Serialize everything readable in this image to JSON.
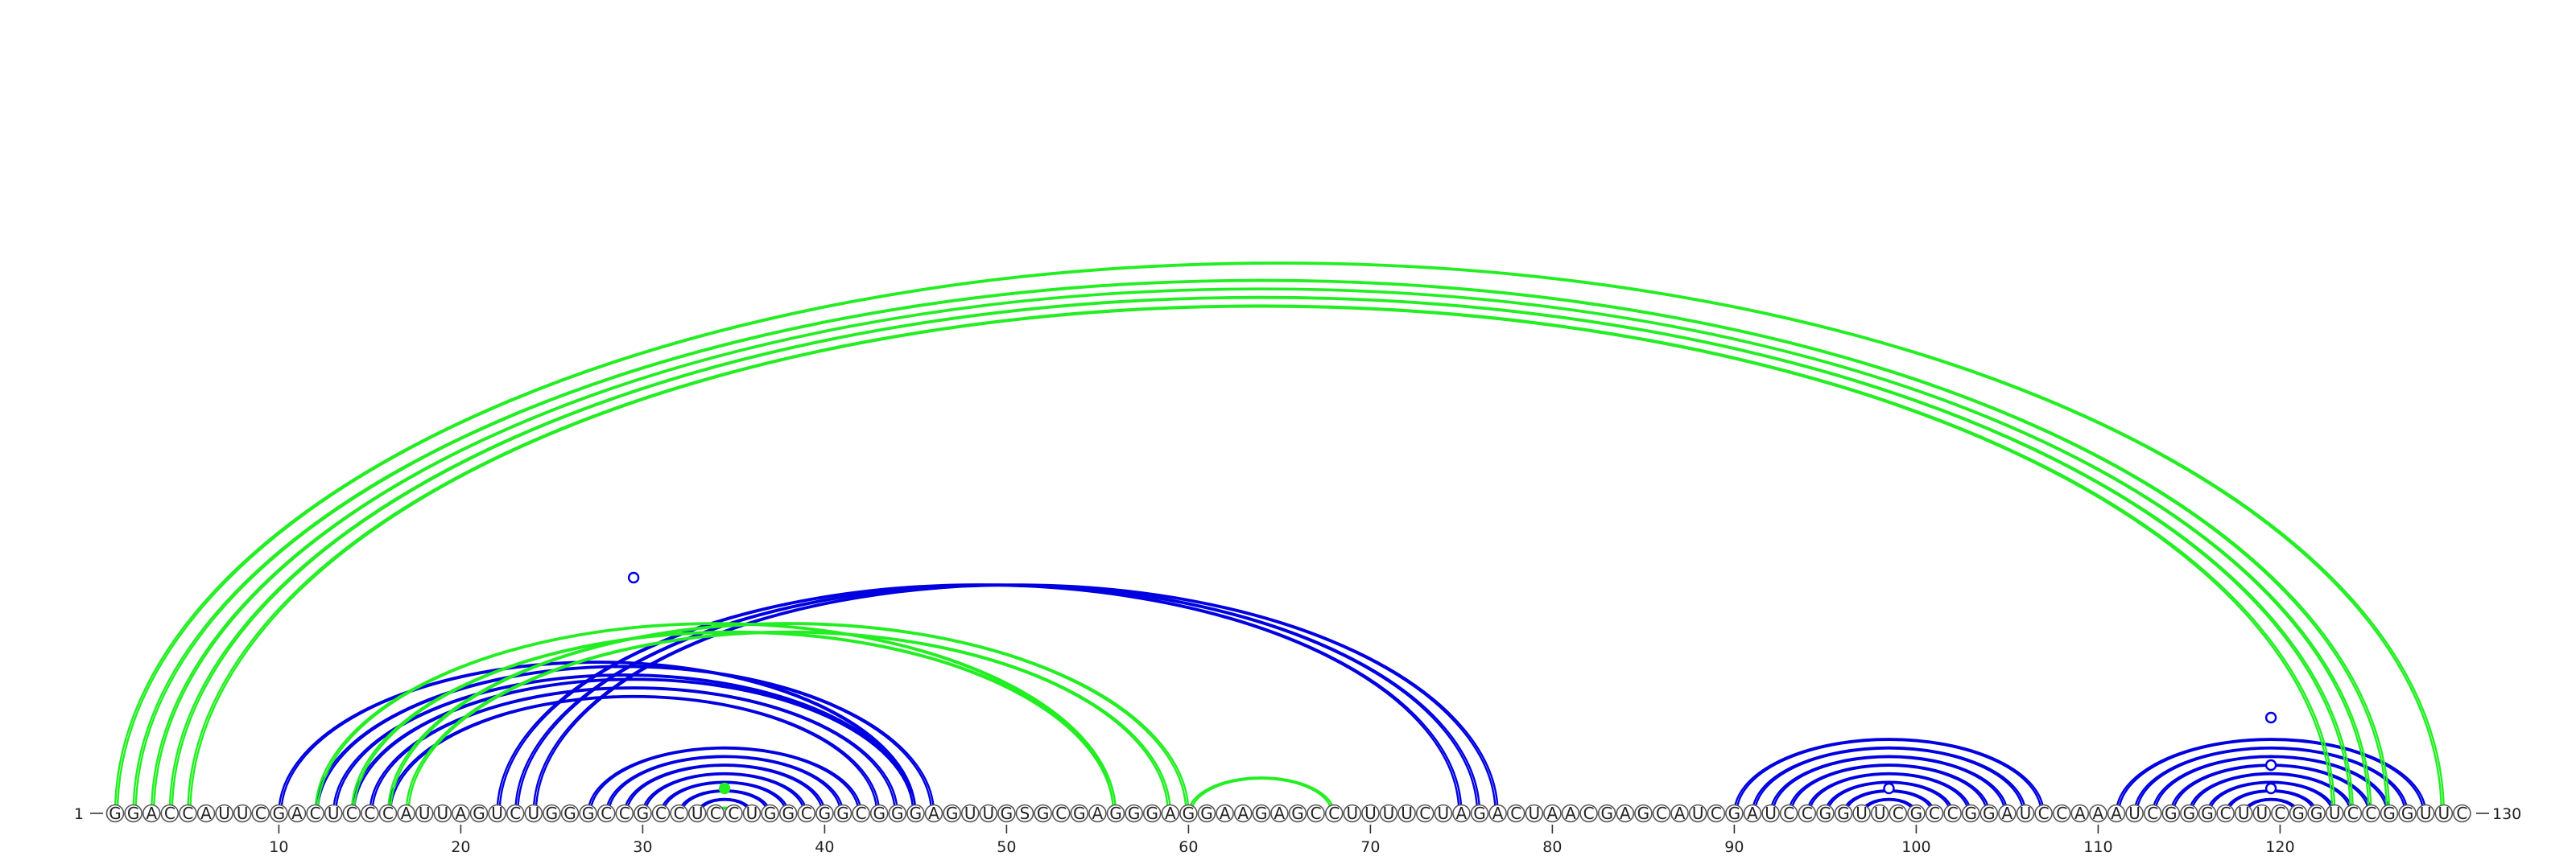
{
  "chart_data": {
    "type": "arc-diagram",
    "title": "",
    "sequence": "GGACCAUUCGACUCCCAUUAGUCUGGGCCGCCUCCUGGCGGCGGGAGUUGSGCGAGGGAGGAAGAGCCUUUUCUAGACUAACGAGCAUCGAUCCGGUUCGCCGGAUCCAAAUCGGGCUUCGGUCCGGUUC",
    "start_label": "1",
    "end_label": "130",
    "tick_labels": [
      "10",
      "20",
      "30",
      "40",
      "50",
      "60",
      "70",
      "80",
      "90",
      "100",
      "110",
      "120"
    ],
    "colors": {
      "blue": "#0000e0",
      "green": "#22ee22"
    },
    "series": [
      {
        "color": "blue",
        "pairs": [
          [
            10,
            45
          ],
          [
            12,
            46
          ],
          [
            13,
            45
          ],
          [
            14,
            45
          ],
          [
            15,
            44
          ],
          [
            16,
            43
          ],
          [
            22,
            75
          ],
          [
            23,
            76
          ],
          [
            24,
            77
          ],
          [
            27,
            42
          ],
          [
            28,
            41
          ],
          [
            29,
            40
          ],
          [
            30,
            39
          ],
          [
            31,
            38
          ],
          [
            32,
            37
          ],
          [
            33,
            36
          ],
          [
            90,
            107
          ],
          [
            91,
            106
          ],
          [
            92,
            105
          ],
          [
            93,
            104
          ],
          [
            94,
            103
          ],
          [
            95,
            102
          ],
          [
            96,
            101
          ],
          [
            97,
            100
          ],
          [
            111,
            128
          ],
          [
            112,
            127
          ],
          [
            113,
            126
          ],
          [
            114,
            125
          ],
          [
            115,
            124
          ],
          [
            116,
            123
          ],
          [
            117,
            122
          ],
          [
            118,
            121
          ]
        ]
      },
      {
        "color": "green",
        "pairs": [
          [
            1,
            129
          ],
          [
            2,
            126
          ],
          [
            3,
            125
          ],
          [
            4,
            124
          ],
          [
            5,
            123
          ],
          [
            12,
            56
          ],
          [
            14,
            56
          ],
          [
            16,
            60
          ],
          [
            17,
            59
          ],
          [
            34,
            35
          ],
          [
            60,
            68
          ]
        ]
      }
    ],
    "markers": [
      {
        "position": 29.5,
        "color": "blue"
      },
      {
        "position": 34.5,
        "color": "green"
      },
      {
        "position": 98.5,
        "color": "blue"
      },
      {
        "position": 119.5,
        "color": "blue"
      },
      {
        "position": 119.5,
        "color": "blue"
      },
      {
        "position": 119.5,
        "color": "blue"
      }
    ]
  }
}
